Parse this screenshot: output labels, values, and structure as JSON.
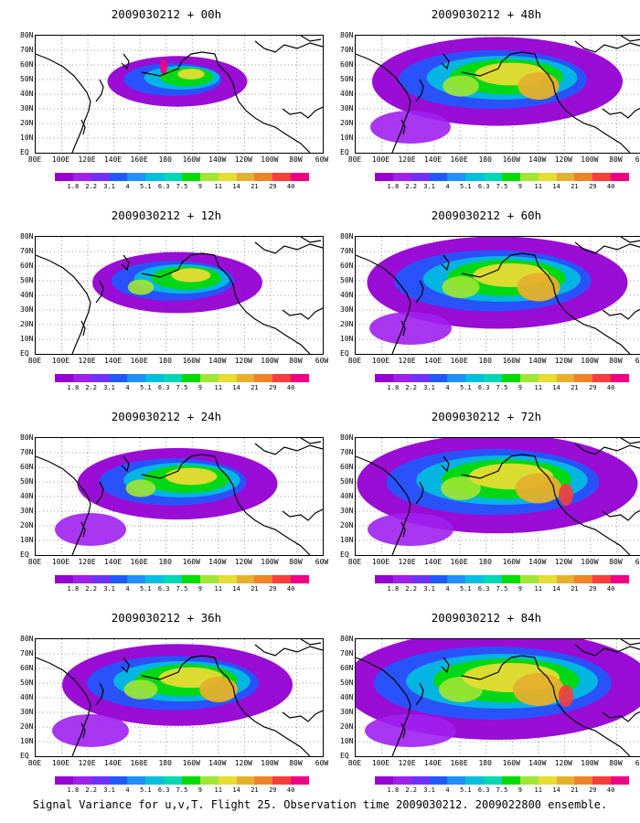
{
  "panels": [
    {
      "title": "2009030212 + 00h",
      "intensity": 0.15
    },
    {
      "title": "2009030212 + 12h",
      "intensity": 0.3
    },
    {
      "title": "2009030212 + 24h",
      "intensity": 0.45
    },
    {
      "title": "2009030212 + 36h",
      "intensity": 0.6
    },
    {
      "title": "2009030212 + 48h",
      "intensity": 0.7
    },
    {
      "title": "2009030212 + 60h",
      "intensity": 0.75
    },
    {
      "title": "2009030212 + 72h",
      "intensity": 0.85
    },
    {
      "title": "2009030212 + 84h",
      "intensity": 1.0
    }
  ],
  "lat_labels": [
    "80N",
    "70N",
    "60N",
    "50N",
    "40N",
    "30N",
    "20N",
    "10N",
    "EQ"
  ],
  "lon_labels": [
    "80E",
    "100E",
    "120E",
    "140E",
    "160E",
    "180",
    "160W",
    "140W",
    "120W",
    "100W",
    "80W",
    "60W"
  ],
  "colorbar": {
    "labels": [
      "1.8",
      "2.2",
      "3.1",
      "4",
      "5.1",
      "6.3",
      "7.5",
      "9",
      "11",
      "14",
      "21",
      "29",
      "40"
    ],
    "colors": [
      "#9400d3",
      "#a020f0",
      "#7030ff",
      "#1e5aff",
      "#1e90ff",
      "#00bfdf",
      "#00d7b4",
      "#00dc00",
      "#a0e632",
      "#e6dc32",
      "#e6af2d",
      "#f08228",
      "#fa3c3c",
      "#f00082"
    ]
  },
  "footer": "Signal Variance for u,v,T. Flight 25. Observation time 2009030212. 2009022800 ensemble."
}
